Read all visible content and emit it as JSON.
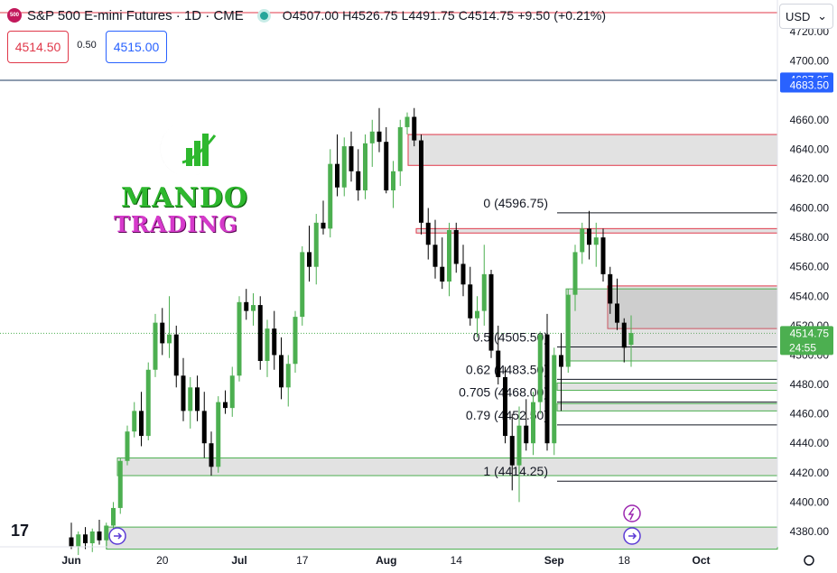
{
  "header": {
    "symbol_badge": "500",
    "title": "S&P 500 E-mini Futures · 1D · CME",
    "ohlc": "O4507.00  H4526.75  L4491.75  C4514.75  +9.50 (+0.21%)"
  },
  "trade": {
    "sell_price": "4514.50",
    "spread": "0.50",
    "buy_price": "4515.00"
  },
  "currency": {
    "value": "USD",
    "chevron": "chevron-down-icon"
  },
  "logo": {
    "line1": "MANDO",
    "line2": "TRADING"
  },
  "chart_data": {
    "type": "candlestick",
    "ylim": [
      4365,
      4730
    ],
    "y_ticks": [
      "4380.00",
      "4400.00",
      "4420.00",
      "4440.00",
      "4460.00",
      "4480.00",
      "4500.00",
      "4520.00",
      "4540.00",
      "4560.00",
      "4580.00",
      "4600.00",
      "4620.00",
      "4640.00",
      "4660.00",
      "4700.00",
      "4720.00"
    ],
    "x_ticks": [
      {
        "label": "Jun",
        "index": 0
      },
      {
        "label": "20",
        "index": 13
      },
      {
        "label": "Jul",
        "index": 24
      },
      {
        "label": "17",
        "index": 33
      },
      {
        "label": "Aug",
        "index": 45
      },
      {
        "label": "14",
        "index": 55
      },
      {
        "label": "Sep",
        "index": 69
      },
      {
        "label": "18",
        "index": 79
      },
      {
        "label": "Oct",
        "index": 90
      }
    ],
    "candles": [
      [
        4376,
        4386,
        4368,
        4370
      ],
      [
        4370,
        4380,
        4364,
        4378
      ],
      [
        4378,
        4383,
        4368,
        4372
      ],
      [
        4372,
        4382,
        4366,
        4380
      ],
      [
        4380,
        4388,
        4371,
        4374
      ],
      [
        4374,
        4386,
        4368,
        4384
      ],
      [
        4384,
        4400,
        4380,
        4396
      ],
      [
        4396,
        4430,
        4392,
        4428
      ],
      [
        4428,
        4452,
        4425,
        4448
      ],
      [
        4448,
        4468,
        4444,
        4462
      ],
      [
        4462,
        4475,
        4438,
        4445
      ],
      [
        4445,
        4495,
        4442,
        4490
      ],
      [
        4490,
        4528,
        4485,
        4522
      ],
      [
        4522,
        4532,
        4500,
        4508
      ],
      [
        4508,
        4540,
        4498,
        4514
      ],
      [
        4514,
        4520,
        4478,
        4486
      ],
      [
        4486,
        4498,
        4455,
        4462
      ],
      [
        4462,
        4485,
        4450,
        4478
      ],
      [
        4478,
        4486,
        4455,
        4462
      ],
      [
        4462,
        4475,
        4430,
        4440
      ],
      [
        4440,
        4448,
        4418,
        4424
      ],
      [
        4424,
        4472,
        4420,
        4468
      ],
      [
        4468,
        4476,
        4460,
        4464
      ],
      [
        4464,
        4492,
        4458,
        4486
      ],
      [
        4486,
        4540,
        4482,
        4536
      ],
      [
        4536,
        4545,
        4524,
        4530
      ],
      [
        4530,
        4542,
        4520,
        4534
      ],
      [
        4534,
        4540,
        4490,
        4496
      ],
      [
        4496,
        4524,
        4485,
        4518
      ],
      [
        4518,
        4530,
        4490,
        4500
      ],
      [
        4500,
        4512,
        4470,
        4478
      ],
      [
        4478,
        4500,
        4465,
        4494
      ],
      [
        4494,
        4530,
        4488,
        4526
      ],
      [
        4526,
        4574,
        4520,
        4570
      ],
      [
        4570,
        4588,
        4550,
        4560
      ],
      [
        4560,
        4596,
        4548,
        4590
      ],
      [
        4590,
        4605,
        4582,
        4586
      ],
      [
        4586,
        4640,
        4580,
        4630
      ],
      [
        4630,
        4650,
        4608,
        4614
      ],
      [
        4614,
        4648,
        4608,
        4642
      ],
      [
        4642,
        4652,
        4618,
        4625
      ],
      [
        4625,
        4640,
        4605,
        4612
      ],
      [
        4612,
        4650,
        4606,
        4644
      ],
      [
        4644,
        4660,
        4628,
        4652
      ],
      [
        4652,
        4668,
        4638,
        4645
      ],
      [
        4645,
        4655,
        4610,
        4612
      ],
      [
        4612,
        4632,
        4600,
        4625
      ],
      [
        4625,
        4660,
        4615,
        4655
      ],
      [
        4655,
        4665,
        4650,
        4662
      ],
      [
        4662,
        4668,
        4642,
        4646
      ],
      [
        4646,
        4650,
        4582,
        4590
      ],
      [
        4590,
        4600,
        4565,
        4575
      ],
      [
        4575,
        4592,
        4552,
        4560
      ],
      [
        4560,
        4580,
        4545,
        4550
      ],
      [
        4550,
        4590,
        4540,
        4585
      ],
      [
        4585,
        4590,
        4556,
        4562
      ],
      [
        4562,
        4575,
        4540,
        4548
      ],
      [
        4548,
        4560,
        4520,
        4525
      ],
      [
        4525,
        4540,
        4512,
        4530
      ],
      [
        4530,
        4575,
        4520,
        4555
      ],
      [
        4555,
        4558,
        4498,
        4503
      ],
      [
        4503,
        4520,
        4480,
        4485
      ],
      [
        4485,
        4492,
        4440,
        4445
      ],
      [
        4445,
        4460,
        4408,
        4425
      ],
      [
        4425,
        4465,
        4400,
        4452
      ],
      [
        4452,
        4470,
        4435,
        4440
      ],
      [
        4440,
        4475,
        4432,
        4468
      ],
      [
        4468,
        4516,
        4460,
        4514
      ],
      [
        4514,
        4528,
        4435,
        4440
      ],
      [
        4440,
        4505,
        4432,
        4500
      ],
      [
        4500,
        4515,
        4462,
        4492
      ],
      [
        4492,
        4545,
        4488,
        4541
      ],
      [
        4541,
        4575,
        4530,
        4570
      ],
      [
        4570,
        4590,
        4562,
        4586
      ],
      [
        4586,
        4598,
        4565,
        4575
      ],
      [
        4575,
        4590,
        4560,
        4580
      ],
      [
        4580,
        4586,
        4550,
        4555
      ],
      [
        4555,
        4560,
        4528,
        4535
      ],
      [
        4535,
        4552,
        4517,
        4522
      ],
      [
        4522,
        4525,
        4495,
        4505
      ],
      [
        4507,
        4527,
        4492,
        4515
      ]
    ],
    "fib_levels": [
      {
        "label": "0 (4596.75)",
        "value": 4596.75
      },
      {
        "label": "0.5 (4505.50)",
        "value": 4505.5
      },
      {
        "label": "0.62 (4483.50)",
        "value": 4483.5
      },
      {
        "label": "0.705 (4468.00)",
        "value": 4468.0
      },
      {
        "label": "0.79 (4452.50)",
        "value": 4452.5
      },
      {
        "label": "1 (4414.25)",
        "value": 4414.25
      }
    ],
    "zones": [
      {
        "type": "supply",
        "from": 4629,
        "to": 4650
      },
      {
        "type": "supply",
        "from": 4583,
        "to": 4586
      },
      {
        "type": "supply",
        "from": 4518,
        "to": 4547
      },
      {
        "type": "demand",
        "from": 4496,
        "to": 4545
      },
      {
        "type": "demand",
        "from": 4476,
        "to": 4481
      },
      {
        "type": "demand",
        "from": 4462,
        "to": 4467
      },
      {
        "type": "demand",
        "from": 4418,
        "to": 4430
      },
      {
        "type": "demand",
        "from": 4368,
        "to": 4383
      }
    ],
    "price_labels": [
      {
        "text": "4687.25",
        "value": 4687.25,
        "color": "#2962ff"
      },
      {
        "text": "4683.50",
        "value": 4683.5,
        "color": "#2962ff"
      },
      {
        "text": "4514.75",
        "value": 4514.75,
        "color": "#4caf50"
      }
    ],
    "countdown": "24:55",
    "last_price": 4514.75,
    "colors": {
      "up": "#4caf50",
      "down": "#000000",
      "supply": "#e0384a",
      "demand": "#4caf50"
    }
  }
}
